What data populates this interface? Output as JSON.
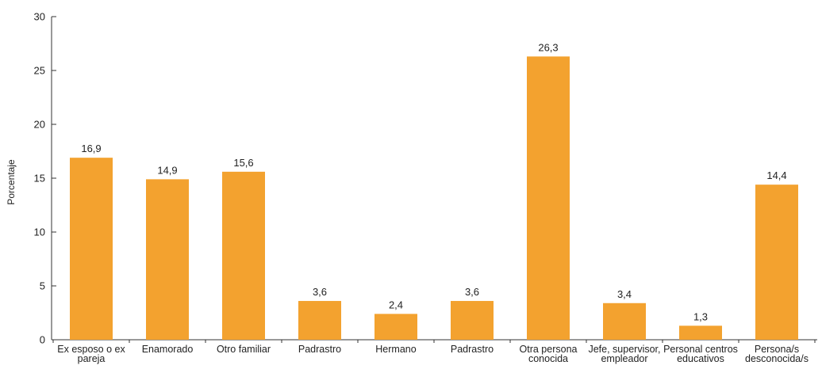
{
  "chart_data": {
    "type": "bar",
    "ylabel": "Porcentaje",
    "xlabel": "",
    "ylim": [
      0,
      30
    ],
    "yticks": [
      0,
      5,
      10,
      15,
      20,
      25,
      30
    ],
    "categories": [
      [
        "Ex esposo o ex",
        "pareja"
      ],
      [
        "Enamorado"
      ],
      [
        "Otro familiar"
      ],
      [
        "Padrastro"
      ],
      [
        "Hermano"
      ],
      [
        "Padrastro"
      ],
      [
        "Otra persona",
        "conocida"
      ],
      [
        "Jefe, supervisor,",
        "empleador"
      ],
      [
        "Personal centros",
        "educativos"
      ],
      [
        "Persona/s",
        "desconocida/s"
      ]
    ],
    "values": [
      16.9,
      14.9,
      15.6,
      3.6,
      2.4,
      3.6,
      26.3,
      3.4,
      1.3,
      14.4
    ],
    "value_labels": [
      "16,9",
      "14,9",
      "15,6",
      "3,6",
      "2,4",
      "3,6",
      "26,3",
      "3,4",
      "1,3",
      "14,4"
    ],
    "bar_color": "#F3A22F",
    "axis_color": "#333333",
    "grid": false,
    "legend": "none"
  }
}
